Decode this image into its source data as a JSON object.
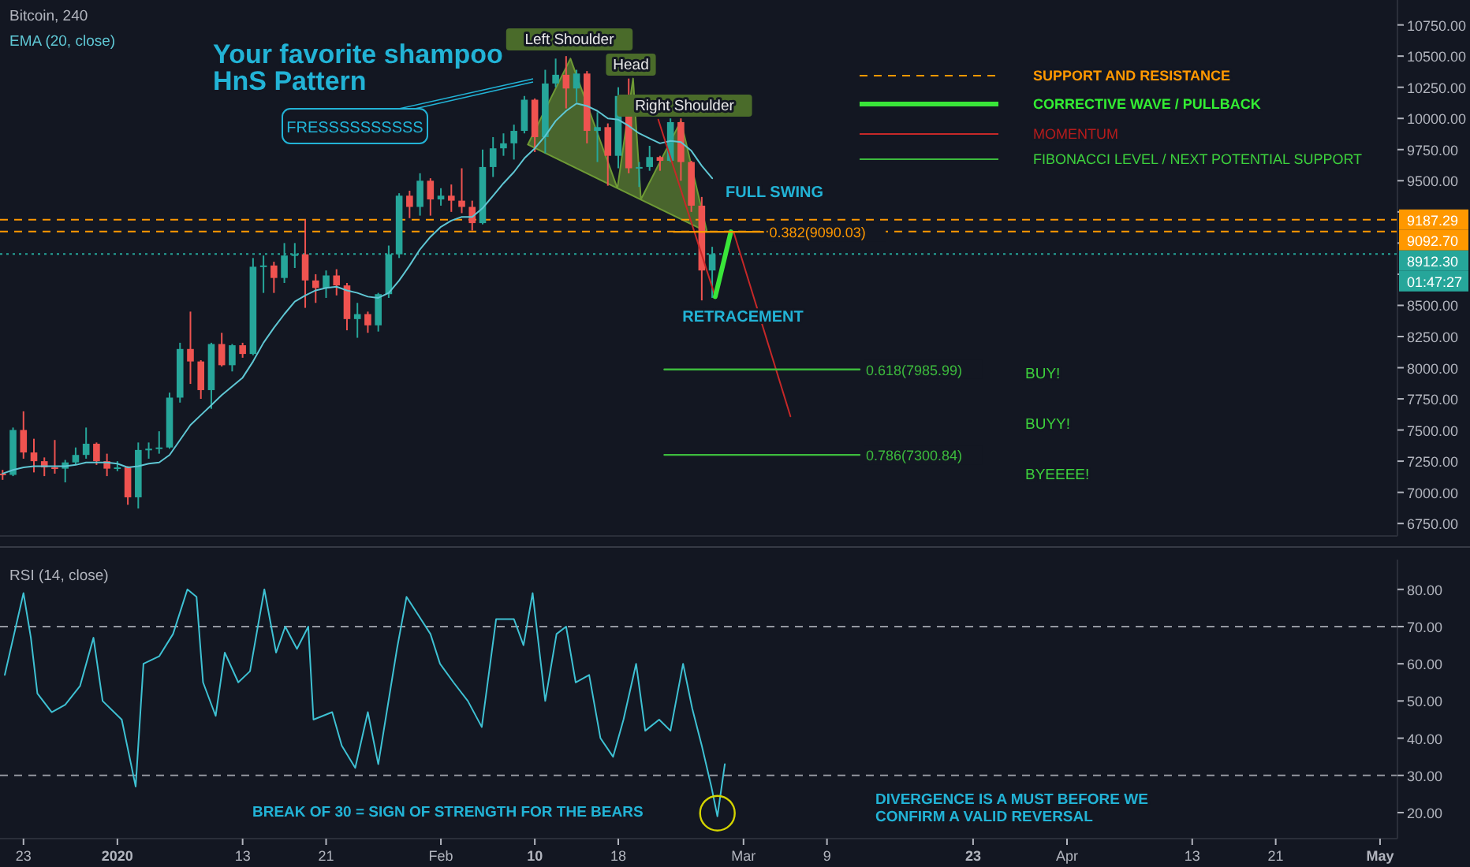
{
  "chart_data": [
    {
      "type": "candlestick",
      "title": "Bitcoin, 240",
      "xlim": [
        "2019-12-20T18:00",
        "2020-05-02T16:00"
      ],
      "ylim": [
        6650,
        10950
      ],
      "tick_labels": "y",
      "yticks": [
        {
          "value": 6750,
          "label": "6750.00"
        },
        {
          "value": 7000,
          "label": "7000.00"
        },
        {
          "value": 7250,
          "label": "7250.00"
        },
        {
          "value": 7500,
          "label": "7500.00"
        },
        {
          "value": 7750,
          "label": "7750.00"
        },
        {
          "value": 8000,
          "label": "8000.00"
        },
        {
          "value": 8250,
          "label": "8250.00"
        },
        {
          "value": 8500,
          "label": "8500.00"
        },
        {
          "value": 8750,
          "label": null
        },
        {
          "value": 9000,
          "label": null
        },
        {
          "value": 9250,
          "label": null
        },
        {
          "value": 9500,
          "label": "9500.00"
        },
        {
          "value": 9750,
          "label": "9750.00"
        },
        {
          "value": 10000,
          "label": "10000.00"
        },
        {
          "value": 10250,
          "label": "10250.00"
        },
        {
          "value": 10500,
          "label": "10500.00"
        },
        {
          "value": 10750,
          "label": "10750.00"
        }
      ],
      "x": [
        "2019-12-21",
        "2019-12-22",
        "2019-12-23",
        "2019-12-24",
        "2019-12-25",
        "2019-12-26",
        "2019-12-27",
        "2019-12-28",
        "2019-12-29",
        "2019-12-30",
        "2019-12-31",
        "2020-01-01",
        "2020-01-02",
        "2020-01-03",
        "2020-01-04",
        "2020-01-05",
        "2020-01-06",
        "2020-01-07",
        "2020-01-08",
        "2020-01-09",
        "2020-01-10",
        "2020-01-11",
        "2020-01-12",
        "2020-01-13",
        "2020-01-14",
        "2020-01-15",
        "2020-01-16",
        "2020-01-17",
        "2020-01-18",
        "2020-01-19",
        "2020-01-20",
        "2020-01-21",
        "2020-01-22",
        "2020-01-23",
        "2020-01-24",
        "2020-01-25",
        "2020-01-26",
        "2020-01-27",
        "2020-01-28",
        "2020-01-29",
        "2020-01-30",
        "2020-01-31",
        "2020-02-01",
        "2020-02-02",
        "2020-02-03",
        "2020-02-04",
        "2020-02-05",
        "2020-02-06",
        "2020-02-07",
        "2020-02-08",
        "2020-02-09",
        "2020-02-10",
        "2020-02-11",
        "2020-02-12",
        "2020-02-13",
        "2020-02-14",
        "2020-02-15",
        "2020-02-16",
        "2020-02-17",
        "2020-02-18",
        "2020-02-19",
        "2020-02-20",
        "2020-02-21",
        "2020-02-22",
        "2020-02-23",
        "2020-02-24",
        "2020-02-25",
        "2020-02-26",
        "2020-02-27"
      ],
      "ohlc": [
        [
          7150,
          7180,
          7100,
          7140
        ],
        [
          7140,
          7520,
          7130,
          7500
        ],
        [
          7500,
          7650,
          7270,
          7320
        ],
        [
          7320,
          7430,
          7160,
          7250
        ],
        [
          7250,
          7280,
          7130,
          7200
        ],
        [
          7200,
          7420,
          7150,
          7190
        ],
        [
          7190,
          7260,
          7080,
          7240
        ],
        [
          7240,
          7360,
          7220,
          7300
        ],
        [
          7300,
          7520,
          7270,
          7390
        ],
        [
          7390,
          7400,
          7220,
          7250
        ],
        [
          7250,
          7310,
          7130,
          7190
        ],
        [
          7190,
          7250,
          7170,
          7200
        ],
        [
          7200,
          7210,
          6900,
          6960
        ],
        [
          6960,
          7400,
          6870,
          7340
        ],
        [
          7340,
          7400,
          7270,
          7350
        ],
        [
          7350,
          7490,
          7310,
          7360
        ],
        [
          7360,
          7800,
          7350,
          7760
        ],
        [
          7760,
          8200,
          7720,
          8150
        ],
        [
          8150,
          8450,
          7870,
          8050
        ],
        [
          8050,
          8060,
          7750,
          7820
        ],
        [
          7820,
          8200,
          7670,
          8190
        ],
        [
          8190,
          8280,
          8010,
          8020
        ],
        [
          8020,
          8190,
          7970,
          8180
        ],
        [
          8180,
          8200,
          8080,
          8110
        ],
        [
          8110,
          8880,
          8100,
          8810
        ],
        [
          8810,
          8900,
          8600,
          8820
        ],
        [
          8820,
          8850,
          8600,
          8720
        ],
        [
          8720,
          9000,
          8680,
          8900
        ],
        [
          8900,
          9000,
          8800,
          8910
        ],
        [
          8910,
          9190,
          8480,
          8700
        ],
        [
          8700,
          8750,
          8520,
          8640
        ],
        [
          8640,
          8780,
          8560,
          8740
        ],
        [
          8740,
          8790,
          8580,
          8660
        ],
        [
          8660,
          8680,
          8300,
          8390
        ],
        [
          8390,
          8520,
          8240,
          8430
        ],
        [
          8430,
          8450,
          8280,
          8340
        ],
        [
          8340,
          8600,
          8290,
          8590
        ],
        [
          8590,
          8980,
          8560,
          8910
        ],
        [
          8910,
          9400,
          8880,
          9380
        ],
        [
          9380,
          9420,
          9200,
          9290
        ],
        [
          9290,
          9560,
          9220,
          9500
        ],
        [
          9500,
          9520,
          9220,
          9350
        ],
        [
          9350,
          9440,
          9300,
          9380
        ],
        [
          9380,
          9470,
          9250,
          9340
        ],
        [
          9340,
          9600,
          9240,
          9290
        ],
        [
          9290,
          9340,
          9100,
          9160
        ],
        [
          9160,
          9750,
          9150,
          9610
        ],
        [
          9610,
          9850,
          9530,
          9760
        ],
        [
          9760,
          9880,
          9700,
          9800
        ],
        [
          9800,
          9950,
          9670,
          9900
        ],
        [
          9900,
          10180,
          9880,
          10150
        ],
        [
          10150,
          10160,
          9730,
          9850
        ],
        [
          9850,
          10390,
          9720,
          10280
        ],
        [
          10280,
          10480,
          10250,
          10350
        ],
        [
          10350,
          10500,
          10080,
          10240
        ],
        [
          10240,
          10390,
          10130,
          10360
        ],
        [
          10360,
          10380,
          9800,
          9900
        ],
        [
          9900,
          10050,
          9650,
          9930
        ],
        [
          9930,
          9960,
          9460,
          9700
        ],
        [
          9700,
          10250,
          9600,
          10180
        ],
        [
          10180,
          10320,
          9560,
          9600
        ],
        [
          9600,
          9650,
          9450,
          9610
        ],
        [
          9610,
          9780,
          9580,
          9690
        ],
        [
          9690,
          9700,
          9580,
          9660
        ],
        [
          9660,
          10000,
          9650,
          9970
        ],
        [
          9970,
          10000,
          9500,
          9650
        ],
        [
          9650,
          9660,
          9250,
          9300
        ],
        [
          9300,
          9370,
          8540,
          8780
        ],
        [
          8780,
          8970,
          8560,
          8910
        ]
      ],
      "series": [
        {
          "type": "line",
          "name": "EMA (20, close)",
          "color": "#5fc7d4",
          "values": [
            7150,
            7180,
            7200,
            7210,
            7210,
            7210,
            7210,
            7220,
            7240,
            7240,
            7240,
            7230,
            7200,
            7210,
            7230,
            7240,
            7300,
            7420,
            7540,
            7620,
            7700,
            7780,
            7850,
            7920,
            8050,
            8200,
            8320,
            8430,
            8530,
            8580,
            8620,
            8640,
            8650,
            8620,
            8600,
            8570,
            8560,
            8600,
            8700,
            8820,
            8950,
            9050,
            9130,
            9180,
            9210,
            9210,
            9280,
            9380,
            9480,
            9570,
            9680,
            9760,
            9860,
            9980,
            10060,
            10120,
            10100,
            10060,
            10000,
            9990,
            9940,
            9880,
            9840,
            9800,
            9820,
            9810,
            9740,
            9620,
            9520
          ]
        },
        {
          "type": "area",
          "color": "#6e9a35",
          "x": [
            "2020-02-09T08:00",
            "2020-02-13T10:00",
            "2020-02-17T22:00",
            "2020-02-19T10:00",
            "2020-02-20T04:00",
            "2020-02-24T00:00",
            "2020-02-26T12:00"
          ],
          "values": [
            9790,
            10480,
            9440,
            10320,
            9350,
            9980,
            9090
          ]
        },
        {
          "type": "line",
          "color": "#c62828",
          "x": [
            "2020-02-21T20:00",
            "2020-02-27T07:00"
          ],
          "values": [
            9990,
            8570
          ]
        },
        {
          "type": "line",
          "color": "#39e639",
          "x": [
            "2020-02-27T07:00",
            "2020-02-28T19:00"
          ],
          "values": [
            8570,
            9090
          ]
        },
        {
          "type": "line",
          "color": "#c62828",
          "x": [
            "2020-02-29T02:00",
            "2020-03-05T12:00"
          ],
          "values": [
            9080,
            7610
          ]
        },
        {
          "type": "line",
          "name": "0.382(9090.03)",
          "color": "#ff9800",
          "x": [
            "2020-02-23T08:00",
            "2020-03-02T21:00"
          ],
          "values": [
            9090.03,
            9090.03
          ]
        },
        {
          "type": "line",
          "name": "0.618(7985.99)",
          "color": "#3dbb3d",
          "x": [
            "2020-02-22T10:00",
            "2020-03-12T03:00"
          ],
          "values": [
            7985.99,
            7985.99
          ]
        },
        {
          "type": "line",
          "name": "0.786(7300.84)",
          "color": "#3dbb3d",
          "x": [
            "2020-02-22T10:00",
            "2020-03-12T03:00"
          ],
          "values": [
            7300.84,
            7300.84
          ]
        }
      ],
      "ref_lines": [
        {
          "axis": "y",
          "value": 9187.29,
          "label": "9187.29",
          "color": "#ff9800",
          "line_style": "dashed"
        },
        {
          "axis": "y",
          "value": 9092.7,
          "label": "9092.70",
          "color": "#ff9800",
          "line_style": "dashed"
        },
        {
          "axis": "y",
          "value": 8912.3,
          "label": "8912.30",
          "color": "#26a69a",
          "line_style": "dotted"
        }
      ],
      "annotations": [
        "Your favorite shampoo",
        "HnS Pattern",
        "FRESSSSSSSSSS",
        "Left Shoulder",
        "Head",
        "Right Shoulder",
        "FULL SWING",
        "RETRACEMENT",
        "SUPPORT AND RESISTANCE",
        "CORRECTIVE WAVE / PULLBACK",
        "MOMENTUM",
        "FIBONACCI LEVEL / NEXT POTENTIAL SUPPORT",
        "BUY!",
        "BUYY!",
        "BYEEEE!",
        "01:47:27"
      ]
    },
    {
      "type": "line",
      "title": "RSI (14, close)",
      "xlim": [
        "2019-12-20T18:00",
        "2020-05-02T16:00"
      ],
      "ylim": [
        13,
        88
      ],
      "xticks": [
        {
          "value": "2019-12-23",
          "label": "23"
        },
        {
          "value": "2020-01-01",
          "label": "2020"
        },
        {
          "value": "2020-01-13",
          "label": "13"
        },
        {
          "value": "2020-01-21",
          "label": "21"
        },
        {
          "value": "2020-02-01",
          "label": "Feb"
        },
        {
          "value": "2020-02-10",
          "label": "10"
        },
        {
          "value": "2020-02-18",
          "label": "18"
        },
        {
          "value": "2020-03-01",
          "label": "Mar"
        },
        {
          "value": "2020-03-09",
          "label": "9"
        },
        {
          "value": "2020-03-23",
          "label": "23"
        },
        {
          "value": "2020-04-01",
          "label": "Apr"
        },
        {
          "value": "2020-04-13",
          "label": "13"
        },
        {
          "value": "2020-04-21",
          "label": "21"
        },
        {
          "value": "2020-05-01",
          "label": "May"
        }
      ],
      "yticks": [
        {
          "value": 20,
          "label": "20.00"
        },
        {
          "value": 30,
          "label": "30.00"
        },
        {
          "value": 40,
          "label": "40.00"
        },
        {
          "value": 50,
          "label": "50.00"
        },
        {
          "value": 60,
          "label": "60.00"
        },
        {
          "value": 70,
          "label": "70.00"
        },
        {
          "value": 80,
          "label": "80.00"
        }
      ],
      "series": [
        {
          "type": "line",
          "color": "#3ec1d3",
          "x": [
            "2019-12-21T05:00",
            "2019-12-23T00:00",
            "2019-12-23T17:00",
            "2019-12-24T08:00",
            "2019-12-25T17:00",
            "2019-12-27T00:00",
            "2019-12-28T10:00",
            "2019-12-29T17:00",
            "2019-12-30T14:00",
            "2020-01-01T10:00",
            "2020-01-02T18:00",
            "2020-01-03T12:00",
            "2020-01-05T00:00",
            "2020-01-06T08:00",
            "2020-01-07T17:00",
            "2020-01-08T14:00",
            "2020-01-09T05:00",
            "2020-01-10T10:00",
            "2020-01-11T07:00",
            "2020-01-12T14:00",
            "2020-01-13T17:00",
            "2020-01-15T02:00",
            "2020-01-16T05:00",
            "2020-01-17T02:00",
            "2020-01-18T05:00",
            "2020-01-19T07:00",
            "2020-01-19T19:00",
            "2020-01-21T14:00",
            "2020-01-22T12:00",
            "2020-01-23T19:00",
            "2020-01-25T00:00",
            "2020-01-26T00:00",
            "2020-01-27T19:00",
            "2020-01-28T17:00",
            "2020-01-30T02:00",
            "2020-01-31T00:00",
            "2020-01-31T22:00",
            "2020-02-02T05:00",
            "2020-02-03T14:00",
            "2020-02-04T22:00",
            "2020-02-06T07:00",
            "2020-02-08T00:00",
            "2020-02-08T22:00",
            "2020-02-09T19:00",
            "2020-02-11T00:00",
            "2020-02-12T02:00",
            "2020-02-13T00:00",
            "2020-02-13T22:00",
            "2020-02-15T05:00",
            "2020-02-16T07:00",
            "2020-02-17T12:00",
            "2020-02-18T12:00",
            "2020-02-19T17:00",
            "2020-02-20T14:00",
            "2020-02-21T22:00",
            "2020-02-23T00:00",
            "2020-02-24T05:00",
            "2020-02-25T02:00",
            "2020-02-26T00:00",
            "2020-02-26T22:00",
            "2020-02-27T12:00",
            "2020-02-28T05:00"
          ],
          "values": [
            57,
            79,
            67,
            52,
            47,
            49,
            54,
            67,
            50,
            45,
            27,
            60,
            62,
            68,
            80,
            78,
            55,
            46,
            63,
            55,
            58,
            80,
            63,
            70,
            64,
            70,
            45,
            47,
            38,
            32,
            47,
            33,
            64,
            78,
            72,
            68,
            60,
            55,
            50,
            43,
            72,
            72,
            65,
            79,
            50,
            68,
            70,
            55,
            57,
            40,
            35,
            45,
            60,
            42,
            45,
            42,
            60,
            48,
            38,
            27,
            19,
            33
          ]
        }
      ],
      "ref_lines": [
        {
          "axis": "y",
          "value": 70,
          "color": "#9598a1",
          "line_style": "dashed"
        },
        {
          "axis": "y",
          "value": 30,
          "color": "#9598a1",
          "line_style": "dashed"
        }
      ],
      "annotations": [
        "BREAK OF 30 = SIGN OF STRENGTH FOR THE BEARS",
        "DIVERGENCE IS A MUST BEFORE WE",
        "CONFIRM A VALID REVERSAL"
      ]
    }
  ]
}
